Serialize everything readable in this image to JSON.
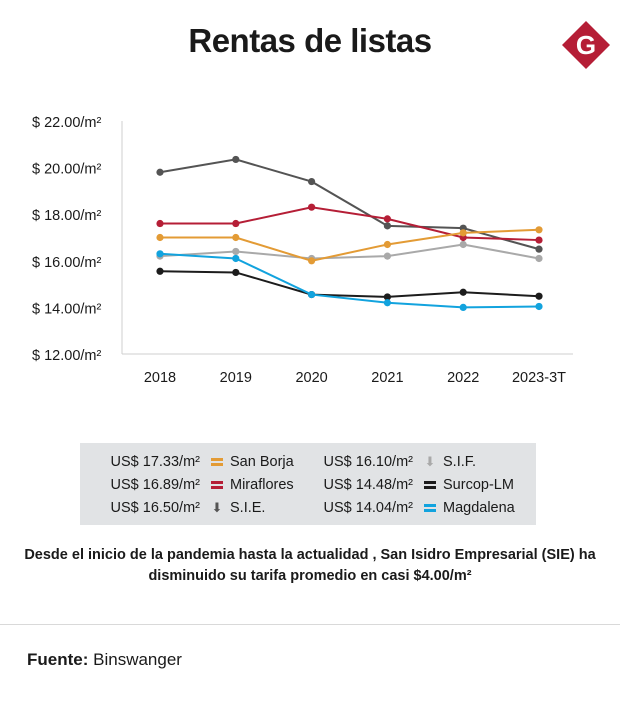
{
  "title": "Rentas de listas",
  "logo_letter": "G",
  "colors": {
    "logo_red": "#b51e36",
    "axis": "#cfcfcf",
    "legend_bg": "#e1e3e5"
  },
  "chart_data": {
    "type": "line",
    "title": "Rentas de listas",
    "xlabel": "",
    "ylabel": "",
    "categories": [
      "2018",
      "2019",
      "2020",
      "2021",
      "2022",
      "2023-3T"
    ],
    "ylim": [
      12,
      22
    ],
    "yticks": [
      12,
      14,
      16,
      18,
      20,
      22
    ],
    "ytick_labels": [
      "$ 12.00/m²",
      "$ 14.00/m²",
      "$ 16.00/m²",
      "$ 18.00/m²",
      "$ 20.00/m²",
      "$ 22.00/m²"
    ],
    "series": [
      {
        "name": "S.I.E.",
        "color": "#545454",
        "values": [
          19.8,
          20.35,
          19.4,
          17.5,
          17.4,
          16.5
        ]
      },
      {
        "name": "S.I.F.",
        "color": "#a9a9a9",
        "values": [
          16.2,
          16.4,
          16.1,
          16.2,
          16.7,
          16.1
        ]
      },
      {
        "name": "Miraflores",
        "color": "#b51e36",
        "values": [
          17.6,
          17.6,
          18.3,
          17.8,
          17.0,
          16.89
        ]
      },
      {
        "name": "San Borja",
        "color": "#e39b35",
        "values": [
          17.0,
          17.0,
          16.0,
          16.7,
          17.2,
          17.33
        ]
      },
      {
        "name": "Surcop-LM",
        "color": "#1c1c1c",
        "values": [
          15.55,
          15.5,
          14.55,
          14.45,
          14.65,
          14.48
        ]
      },
      {
        "name": "Magdalena",
        "color": "#12a3de",
        "values": [
          16.3,
          16.1,
          14.55,
          14.2,
          14.0,
          14.04
        ]
      }
    ]
  },
  "legend": {
    "items": [
      {
        "value": "US$ 17.33/m²",
        "label": "San Borja",
        "marker": "bars",
        "color": "#e39b35"
      },
      {
        "value": "US$ 16.89/m²",
        "label": "Miraflores",
        "marker": "bars",
        "color": "#b51e36"
      },
      {
        "value": "US$ 16.50/m²",
        "label": "S.I.E.",
        "marker": "arrow",
        "color": "#545454"
      },
      {
        "value": "US$ 16.10/m²",
        "label": "S.I.F.",
        "marker": "arrow",
        "color": "#a9a9a9"
      },
      {
        "value": "US$ 14.48/m²",
        "label": "Surcop-LM",
        "marker": "bars",
        "color": "#1c1c1c"
      },
      {
        "value": "US$ 14.04/m²",
        "label": "Magdalena",
        "marker": "bars",
        "color": "#12a3de"
      }
    ]
  },
  "caption": "Desde el inicio de la pandemia hasta la actualidad , San Isidro Empresarial (SIE) ha disminuido su tarifa promedio en casi $4.00/m²",
  "source": {
    "label": "Fuente:",
    "text": "Binswanger"
  }
}
